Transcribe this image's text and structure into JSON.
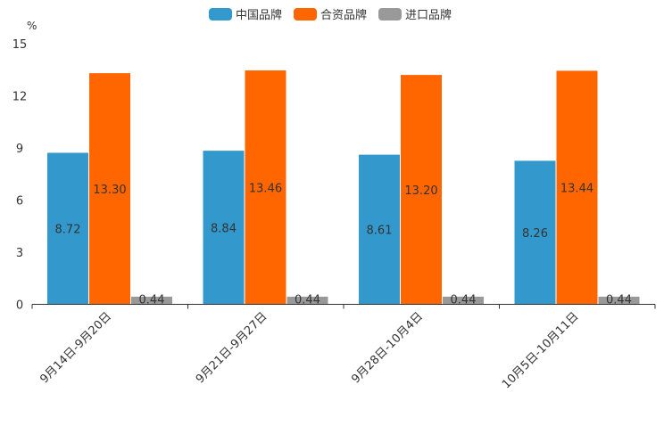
{
  "chart_data": {
    "type": "bar",
    "title": "",
    "xlabel": "",
    "ylabel": "%",
    "ylim": [
      0,
      15
    ],
    "yticks": [
      0,
      3,
      6,
      9,
      12,
      15
    ],
    "legend_position": "top-center",
    "categories": [
      "9月14日-9月20日",
      "9月21日-9月27日",
      "9月28日-10月4日",
      "10月5日-10月11日"
    ],
    "series": [
      {
        "name": "中国品牌",
        "color": "#3399cc",
        "values": [
          8.72,
          8.84,
          8.61,
          8.26
        ],
        "labels": [
          "8.72",
          "8.84",
          "8.61",
          "8.26"
        ]
      },
      {
        "name": "合资品牌",
        "color": "#ff6600",
        "values": [
          13.3,
          13.46,
          13.2,
          13.44
        ],
        "labels": [
          "13.30",
          "13.46",
          "13.20",
          "13.44"
        ]
      },
      {
        "name": "进口品牌",
        "color": "#999999",
        "values": [
          0.44,
          0.44,
          0.44,
          0.44
        ],
        "labels": [
          "0.44",
          "0.44",
          "0.44",
          "0.44"
        ]
      }
    ]
  }
}
